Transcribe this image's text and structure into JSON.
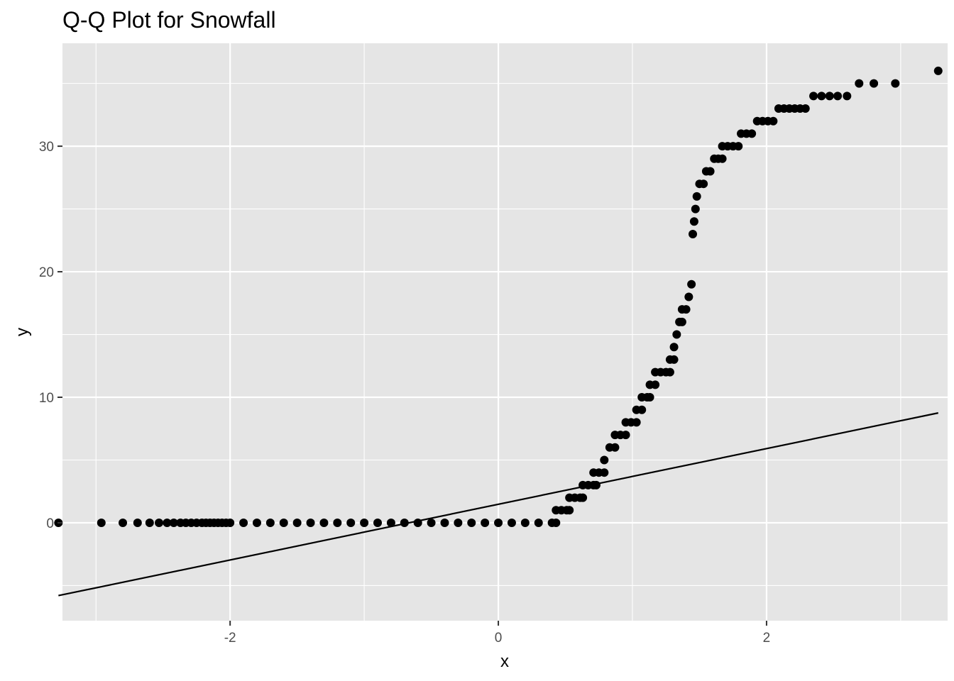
{
  "chart_data": {
    "type": "scatter",
    "title": "Q-Q Plot for Snowfall",
    "xlabel": "x",
    "ylabel": "y",
    "xlim": [
      -3.25,
      3.35
    ],
    "ylim": [
      -7.8,
      38.2
    ],
    "x_ticks": [
      -2,
      0,
      2
    ],
    "x_tick_labels": [
      "-2",
      "0",
      "2"
    ],
    "y_ticks": [
      0,
      10,
      20,
      30
    ],
    "y_tick_labels": [
      "0",
      "10",
      "20",
      "30"
    ],
    "grid": true,
    "legend": "none",
    "colors": {
      "panel_background": "#e5e5e5",
      "grid_line": "#ffffff",
      "point": "#000000",
      "reference_line": "#000000"
    },
    "reference_line": {
      "x": [
        -3.28,
        3.28
      ],
      "y": [
        -5.8,
        8.75
      ]
    },
    "series": [
      {
        "type": "scatter",
        "points": [
          [
            -3.28,
            0
          ],
          [
            -2.96,
            0
          ],
          [
            -2.8,
            0
          ],
          [
            -2.69,
            0
          ],
          [
            -2.6,
            0
          ],
          [
            -2.53,
            0
          ],
          [
            -2.47,
            0
          ],
          [
            -2.42,
            0
          ],
          [
            -2.37,
            0
          ],
          [
            -2.33,
            0
          ],
          [
            -2.29,
            0
          ],
          [
            -2.25,
            0
          ],
          [
            -2.21,
            0
          ],
          [
            -2.18,
            0
          ],
          [
            -2.15,
            0
          ],
          [
            -2.12,
            0
          ],
          [
            -2.09,
            0
          ],
          [
            -2.06,
            0
          ],
          [
            -2.03,
            0
          ],
          [
            -2.0,
            0
          ],
          [
            -1.9,
            0
          ],
          [
            -1.8,
            0
          ],
          [
            -1.7,
            0
          ],
          [
            -1.6,
            0
          ],
          [
            -1.5,
            0
          ],
          [
            -1.4,
            0
          ],
          [
            -1.3,
            0
          ],
          [
            -1.2,
            0
          ],
          [
            -1.1,
            0
          ],
          [
            -1.0,
            0
          ],
          [
            -0.9,
            0
          ],
          [
            -0.8,
            0
          ],
          [
            -0.7,
            0
          ],
          [
            -0.6,
            0
          ],
          [
            -0.5,
            0
          ],
          [
            -0.4,
            0
          ],
          [
            -0.3,
            0
          ],
          [
            -0.2,
            0
          ],
          [
            -0.1,
            0
          ],
          [
            0.0,
            0
          ],
          [
            0.1,
            0
          ],
          [
            0.2,
            0
          ],
          [
            0.3,
            0
          ],
          [
            0.4,
            0
          ],
          [
            0.43,
            0
          ],
          [
            0.43,
            1
          ],
          [
            0.47,
            1
          ],
          [
            0.51,
            1
          ],
          [
            0.53,
            1
          ],
          [
            0.53,
            2
          ],
          [
            0.57,
            2
          ],
          [
            0.61,
            2
          ],
          [
            0.63,
            2
          ],
          [
            0.63,
            3
          ],
          [
            0.67,
            3
          ],
          [
            0.71,
            3
          ],
          [
            0.73,
            3
          ],
          [
            0.71,
            4
          ],
          [
            0.75,
            4
          ],
          [
            0.79,
            4
          ],
          [
            0.79,
            5
          ],
          [
            0.83,
            6
          ],
          [
            0.87,
            6
          ],
          [
            0.87,
            7
          ],
          [
            0.91,
            7
          ],
          [
            0.95,
            7
          ],
          [
            0.95,
            8
          ],
          [
            0.99,
            8
          ],
          [
            1.03,
            8
          ],
          [
            1.03,
            9
          ],
          [
            1.07,
            9
          ],
          [
            1.07,
            10
          ],
          [
            1.11,
            10
          ],
          [
            1.13,
            10
          ],
          [
            1.13,
            11
          ],
          [
            1.17,
            11
          ],
          [
            1.17,
            12
          ],
          [
            1.21,
            12
          ],
          [
            1.25,
            12
          ],
          [
            1.28,
            12
          ],
          [
            1.28,
            13
          ],
          [
            1.31,
            13
          ],
          [
            1.31,
            14
          ],
          [
            1.33,
            15
          ],
          [
            1.35,
            16
          ],
          [
            1.37,
            16
          ],
          [
            1.37,
            17
          ],
          [
            1.4,
            17
          ],
          [
            1.42,
            18
          ],
          [
            1.44,
            19
          ],
          [
            1.45,
            23
          ],
          [
            1.46,
            24
          ],
          [
            1.47,
            25
          ],
          [
            1.48,
            26
          ],
          [
            1.5,
            27
          ],
          [
            1.53,
            27
          ],
          [
            1.55,
            28
          ],
          [
            1.58,
            28
          ],
          [
            1.61,
            29
          ],
          [
            1.64,
            29
          ],
          [
            1.67,
            29
          ],
          [
            1.67,
            30
          ],
          [
            1.71,
            30
          ],
          [
            1.75,
            30
          ],
          [
            1.79,
            30
          ],
          [
            1.81,
            31
          ],
          [
            1.85,
            31
          ],
          [
            1.89,
            31
          ],
          [
            1.93,
            32
          ],
          [
            1.97,
            32
          ],
          [
            2.01,
            32
          ],
          [
            2.05,
            32
          ],
          [
            2.09,
            33
          ],
          [
            2.13,
            33
          ],
          [
            2.17,
            33
          ],
          [
            2.21,
            33
          ],
          [
            2.25,
            33
          ],
          [
            2.29,
            33
          ],
          [
            2.35,
            34
          ],
          [
            2.41,
            34
          ],
          [
            2.47,
            34
          ],
          [
            2.53,
            34
          ],
          [
            2.6,
            34
          ],
          [
            2.69,
            35
          ],
          [
            2.8,
            35
          ],
          [
            2.96,
            35
          ],
          [
            3.28,
            36
          ]
        ]
      }
    ]
  }
}
